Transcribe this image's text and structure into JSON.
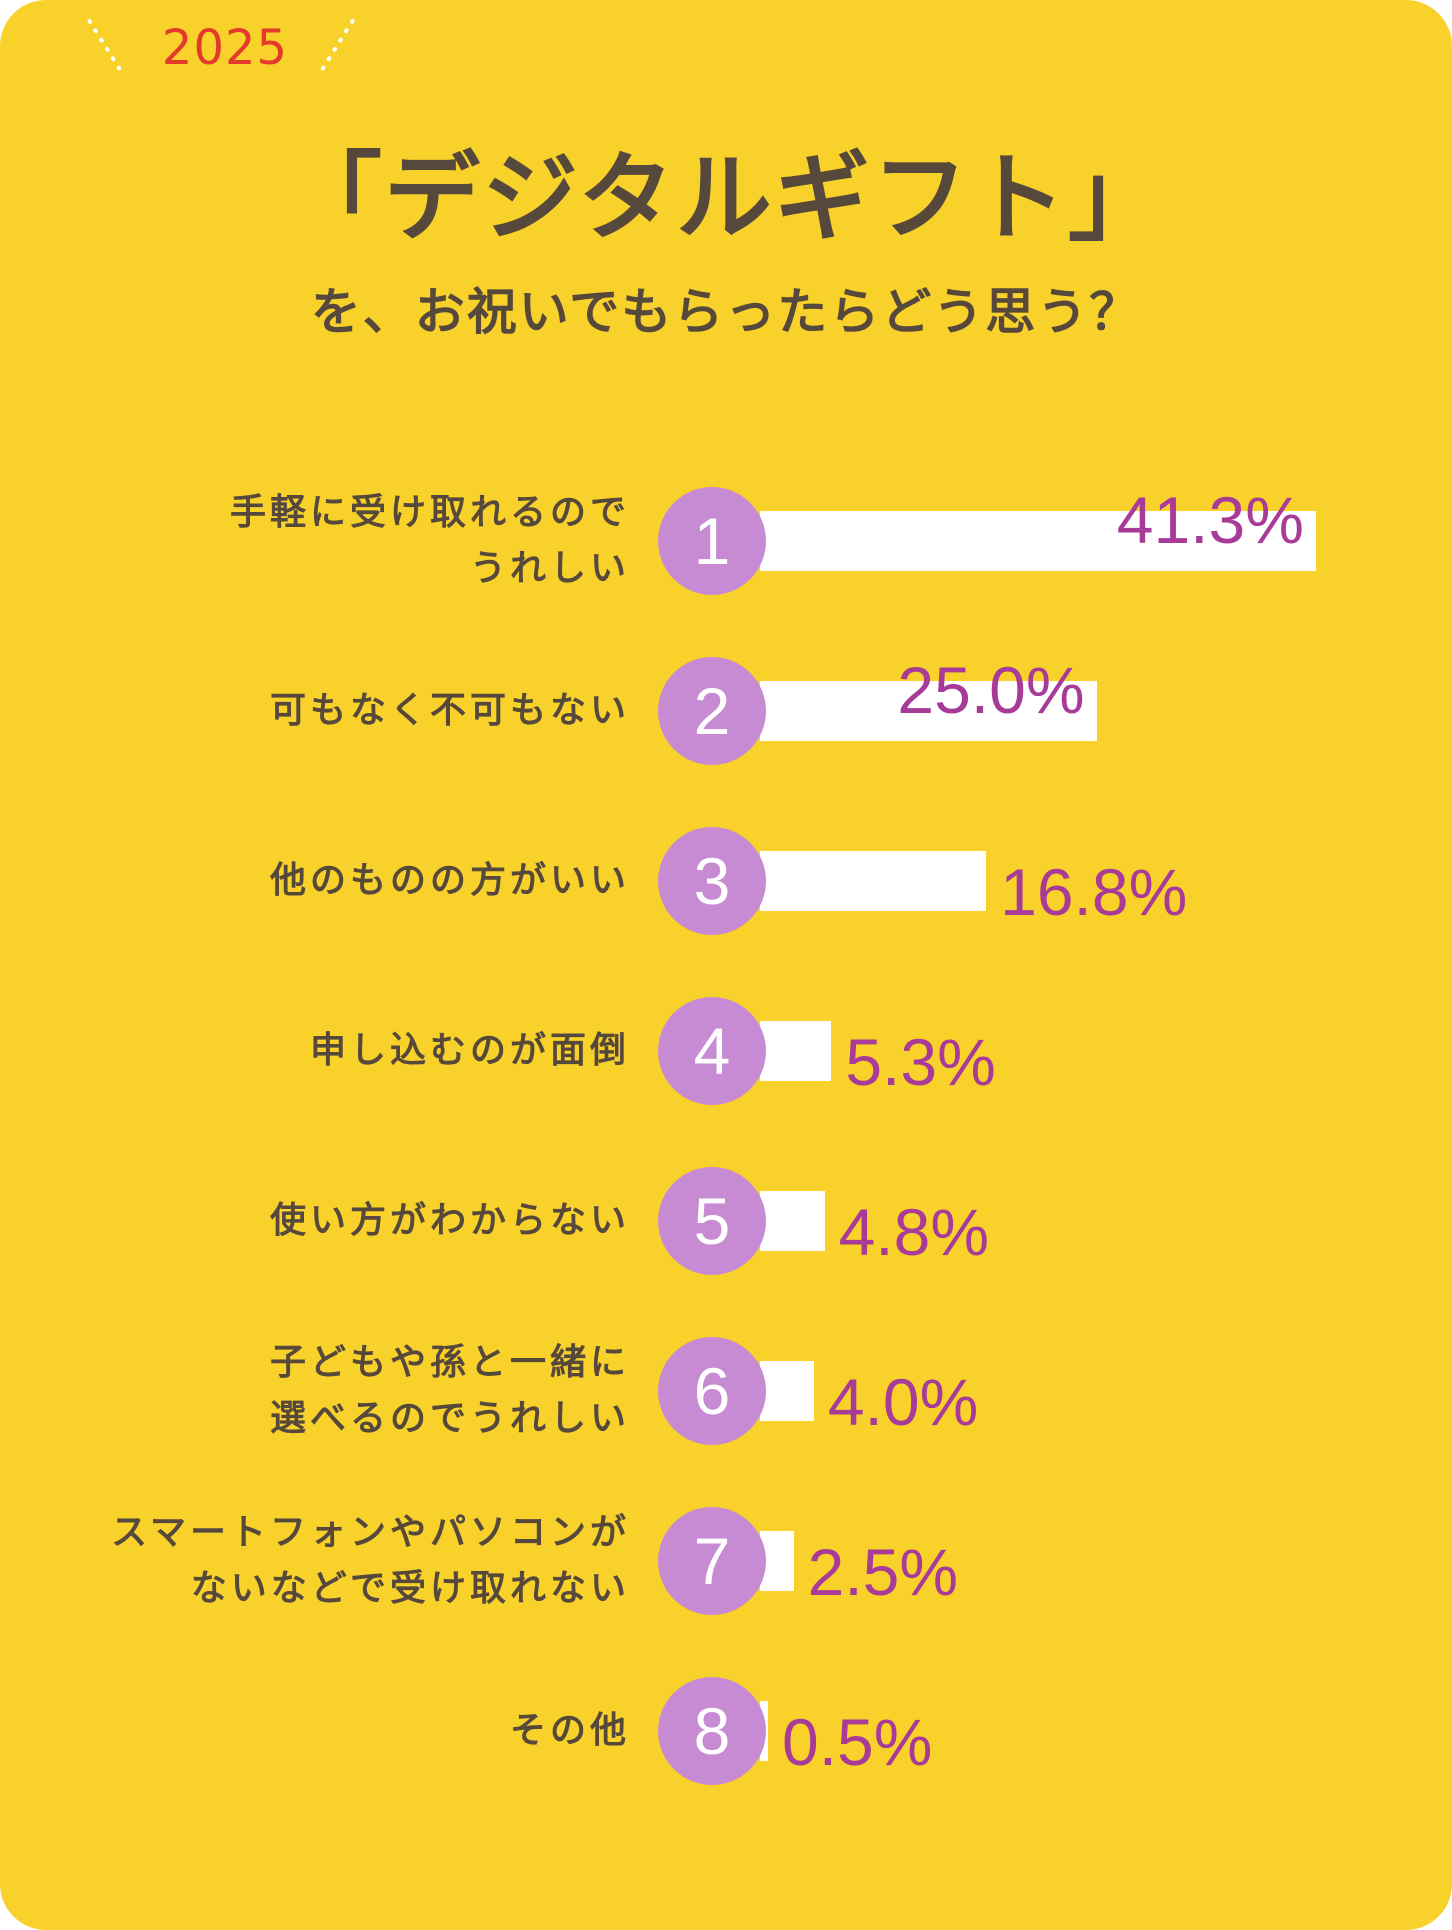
{
  "header": {
    "year": "2025",
    "title": "「デジタルギフト」",
    "subtitle": "を、お祝いでもらったらどう思う？"
  },
  "colors": {
    "background": "#f8d12b",
    "bar": "#ffffff",
    "rank_circle": "#c68bd3",
    "value_text": "#a83b98",
    "label_text": "#56493c",
    "year_text": "#e33a2c"
  },
  "chart_data": {
    "type": "bar",
    "orientation": "horizontal",
    "title": "「デジタルギフト」を、お祝いでもらったらどう思う？",
    "categories": [
      "手軽に受け取れるので\nうれしい",
      "可もなく不可もない",
      "他のものの方がいい",
      "申し込むのが面倒",
      "使い方がわからない",
      "子どもや孫と一緒に\n選べるのでうれしい",
      "スマートフォンやパソコンが\nないなどで受け取れない",
      "その他"
    ],
    "ranks": [
      "1",
      "2",
      "3",
      "4",
      "5",
      "6",
      "7",
      "8"
    ],
    "values": [
      41.3,
      25.0,
      16.8,
      5.3,
      4.8,
      4.0,
      2.5,
      0.5
    ],
    "value_labels": [
      "41.3%",
      "25.0%",
      "16.8%",
      "5.3%",
      "4.8%",
      "4.0%",
      "2.5%",
      "0.5%"
    ],
    "unit": "%",
    "legend": "none",
    "grid": false
  }
}
